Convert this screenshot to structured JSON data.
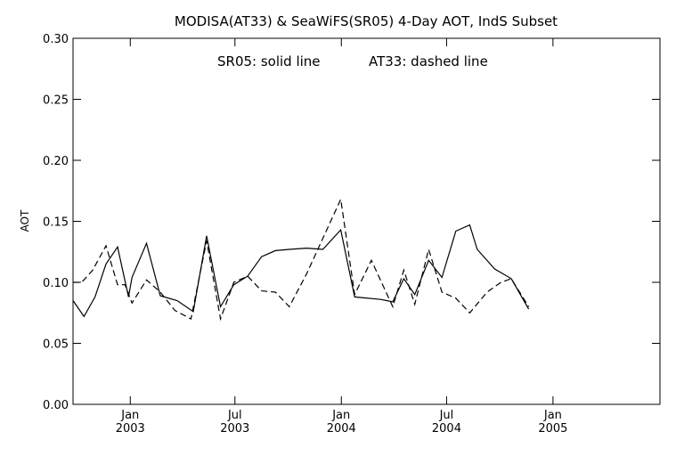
{
  "chart_data": {
    "type": "line",
    "title": "MODISA(AT33) & SeaWiFS(SR05) 4-Day AOT, IndS Subset",
    "legend_text": {
      "solid": "SR05: solid line",
      "dashed": "AT33: dashed line"
    },
    "ylabel": "AOT",
    "xlabel": "",
    "xlim": [
      "2002-09-24",
      "2005-07-05"
    ],
    "ylim": [
      0.0,
      0.3
    ],
    "yticks": [
      "0.00",
      "0.05",
      "0.10",
      "0.15",
      "0.20",
      "0.25",
      "0.30"
    ],
    "xticks": [
      {
        "date": "2003-01-01",
        "month": "Jan",
        "year": "2003"
      },
      {
        "date": "2003-07-01",
        "month": "Jul",
        "year": "2003"
      },
      {
        "date": "2004-01-01",
        "month": "Jan",
        "year": "2004"
      },
      {
        "date": "2004-07-01",
        "month": "Jul",
        "year": "2004"
      },
      {
        "date": "2005-01-01",
        "month": "Jan",
        "year": "2005"
      }
    ],
    "series": [
      {
        "name": "SR05",
        "style": "solid",
        "points": [
          [
            "2002-09-24",
            0.085
          ],
          [
            "2002-10-13",
            0.072
          ],
          [
            "2002-11-01",
            0.088
          ],
          [
            "2002-11-20",
            0.115
          ],
          [
            "2002-12-10",
            0.129
          ],
          [
            "2002-12-29",
            0.088
          ],
          [
            "2003-01-04",
            0.104
          ],
          [
            "2003-01-29",
            0.132
          ],
          [
            "2003-02-22",
            0.089
          ],
          [
            "2003-03-23",
            0.085
          ],
          [
            "2003-04-20",
            0.076
          ],
          [
            "2003-05-13",
            0.138
          ],
          [
            "2003-06-06",
            0.08
          ],
          [
            "2003-06-29",
            0.098
          ],
          [
            "2003-07-23",
            0.105
          ],
          [
            "2003-08-16",
            0.121
          ],
          [
            "2003-09-09",
            0.126
          ],
          [
            "2003-10-03",
            0.127
          ],
          [
            "2003-11-02",
            0.128
          ],
          [
            "2003-11-30",
            0.127
          ],
          [
            "2003-12-31",
            0.143
          ],
          [
            "2004-01-24",
            0.088
          ],
          [
            "2004-03-09",
            0.086
          ],
          [
            "2004-03-30",
            0.084
          ],
          [
            "2004-04-18",
            0.103
          ],
          [
            "2004-05-07",
            0.09
          ],
          [
            "2004-05-31",
            0.118
          ],
          [
            "2004-06-23",
            0.104
          ],
          [
            "2004-07-17",
            0.142
          ],
          [
            "2004-08-10",
            0.147
          ],
          [
            "2004-08-23",
            0.127
          ],
          [
            "2004-09-22",
            0.111
          ],
          [
            "2004-10-21",
            0.103
          ],
          [
            "2004-11-20",
            0.078
          ]
        ]
      },
      {
        "name": "AT33",
        "style": "dashed",
        "points": [
          [
            "2002-09-24",
            0.1
          ],
          [
            "2002-10-09",
            0.1
          ],
          [
            "2002-10-28",
            0.11
          ],
          [
            "2002-11-20",
            0.13
          ],
          [
            "2002-12-10",
            0.098
          ],
          [
            "2002-12-23",
            0.098
          ],
          [
            "2003-01-04",
            0.083
          ],
          [
            "2003-01-29",
            0.102
          ],
          [
            "2003-02-22",
            0.092
          ],
          [
            "2003-03-19",
            0.077
          ],
          [
            "2003-04-16",
            0.07
          ],
          [
            "2003-05-13",
            0.134
          ],
          [
            "2003-06-06",
            0.07
          ],
          [
            "2003-06-29",
            0.1
          ],
          [
            "2003-07-23",
            0.105
          ],
          [
            "2003-08-16",
            0.093
          ],
          [
            "2003-09-09",
            0.092
          ],
          [
            "2003-10-03",
            0.08
          ],
          [
            "2003-11-02",
            0.107
          ],
          [
            "2003-12-31",
            0.168
          ],
          [
            "2004-01-24",
            0.09
          ],
          [
            "2004-02-22",
            0.118
          ],
          [
            "2004-03-30",
            0.08
          ],
          [
            "2004-04-18",
            0.11
          ],
          [
            "2004-05-07",
            0.082
          ],
          [
            "2004-05-31",
            0.127
          ],
          [
            "2004-06-23",
            0.092
          ],
          [
            "2004-07-17",
            0.087
          ],
          [
            "2004-08-10",
            0.075
          ],
          [
            "2004-09-09",
            0.092
          ],
          [
            "2004-10-03",
            0.1
          ],
          [
            "2004-10-21",
            0.103
          ],
          [
            "2004-11-20",
            0.08
          ]
        ]
      }
    ]
  }
}
